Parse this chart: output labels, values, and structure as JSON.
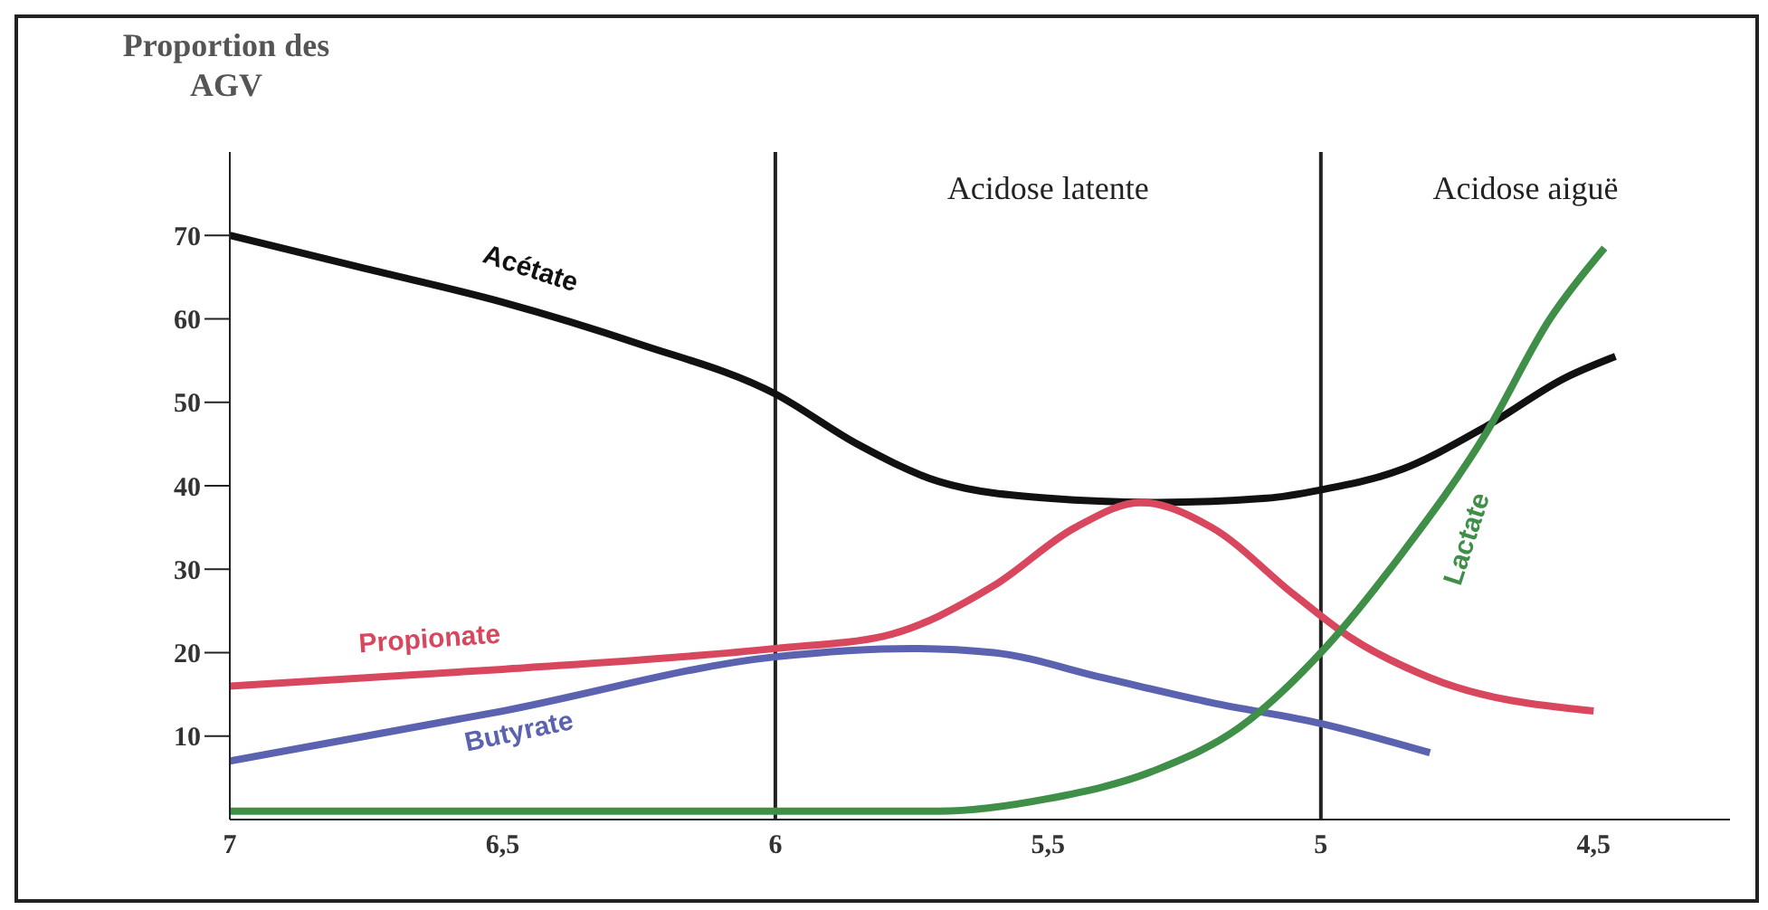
{
  "chart_data": {
    "type": "line",
    "ylabel": "Proportion des AGV",
    "annotations": [
      "Acidose latente",
      "Acidose aiguë"
    ],
    "xlim": [
      7,
      4.25
    ],
    "ylim": [
      0,
      80
    ],
    "xticks": [
      7,
      {
        "value": 6.5,
        "label": "6,5"
      },
      6,
      {
        "value": 5.5,
        "label": "5,5"
      },
      5,
      {
        "value": 4.5,
        "label": "4,5"
      }
    ],
    "yticks": [
      10,
      20,
      30,
      40,
      50,
      60,
      70
    ],
    "ref_lines": [
      {
        "axis": "x",
        "value": 6,
        "color": "#222222"
      },
      {
        "axis": "x",
        "value": 5,
        "color": "#222222"
      }
    ],
    "grid": false,
    "legend": false,
    "marker": "none",
    "line_style": "solid",
    "series": [
      {
        "name": "Acétate",
        "color": "#111111",
        "x": [
          7,
          6.75,
          6.5,
          6.25,
          6,
          5.85,
          5.7,
          5.5,
          5.3,
          5.1,
          5,
          4.85,
          4.7,
          4.55,
          4.46
        ],
        "values": [
          70,
          66,
          62,
          57,
          51,
          45,
          40.5,
          38.5,
          38,
          38.5,
          39.5,
          42,
          47,
          53,
          55.5
        ]
      },
      {
        "name": "Propionate",
        "color": "#d9475e",
        "x": [
          7,
          6.5,
          6,
          5.8,
          5.6,
          5.45,
          5.33,
          5.2,
          5.05,
          4.95,
          4.8,
          4.5
        ],
        "values": [
          16,
          18,
          20.5,
          22,
          28,
          35,
          38,
          35,
          27,
          22,
          17,
          13
        ]
      },
      {
        "name": "Butyrate",
        "color": "#5b63b0",
        "x": [
          7,
          6.5,
          6,
          5.75,
          5.6,
          5.4,
          5.2,
          5,
          4.8
        ],
        "values": [
          7,
          13,
          19.5,
          20.5,
          20,
          17,
          14,
          11.5,
          8
        ]
      },
      {
        "name": "Lactate",
        "color": "#3f8f48",
        "x": [
          7,
          6,
          5.7,
          5.5,
          5.3,
          5.15,
          5,
          4.85,
          4.7,
          4.58,
          4.48
        ],
        "values": [
          1,
          1,
          1,
          2.5,
          6,
          11,
          20,
          32,
          46,
          60,
          68.5
        ]
      }
    ]
  }
}
